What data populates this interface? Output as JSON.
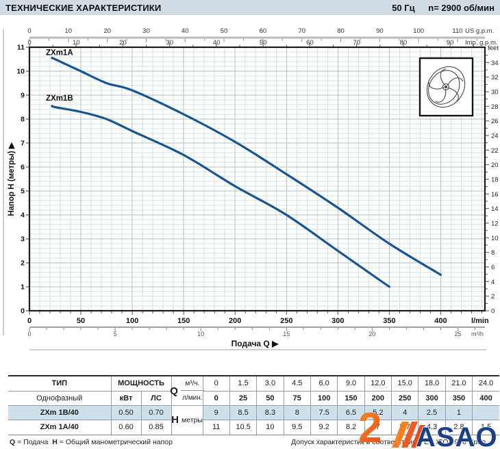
{
  "header": {
    "title": "ТЕХНИЧЕСКИЕ ХАРАКТЕРИСТИКИ",
    "frequency": "50 Гц",
    "speed": "n= 2900  об/мин"
  },
  "chart_data": {
    "type": "line",
    "xlabel": "Подача Q  ▶",
    "ylabel": "Напор H (метры)  ▶",
    "curve_color": "#175590",
    "axes": {
      "q_max": 443,
      "h_max": 11,
      "x_top_us": {
        "unit": "US g.p.m.",
        "labels": [
          0,
          10,
          20,
          30,
          40,
          50,
          60,
          70,
          80,
          90,
          100,
          110
        ],
        "minor_step": 5,
        "lmin_per_unit": 3.785
      },
      "x_top_imp": {
        "unit": "Imp. g.p.m.",
        "labels": [
          0,
          10,
          20,
          30,
          40,
          50,
          60,
          70,
          80,
          90
        ],
        "minor_step": 5,
        "lmin_per_unit": 4.546
      },
      "x_bottom_lmin": {
        "unit": "l/min",
        "labels": [
          0,
          50,
          100,
          150,
          200,
          250,
          300,
          350,
          400
        ],
        "minor_step": 10,
        "lmin_per_unit": 1
      },
      "x_bottom_m3h": {
        "unit": "m³/h",
        "labels": [
          0,
          5,
          10,
          15,
          20,
          25
        ],
        "minor_step": 1,
        "lmin_per_unit": 16.6667
      },
      "y_left_m": {
        "labels": [
          0,
          1,
          2,
          3,
          4,
          5,
          6,
          7,
          8,
          9,
          10,
          11
        ],
        "minor_step": 0.2
      },
      "y_right_feet": {
        "unit": "feet",
        "labels": [
          0,
          2,
          4,
          6,
          8,
          10,
          12,
          14,
          16,
          18,
          20,
          22,
          24,
          26,
          28,
          30,
          32,
          34
        ],
        "minor_step": 1,
        "m_per_unit": 0.3048
      }
    },
    "series": [
      {
        "name": "ZXm1A",
        "label_pos": [
          16,
          10.78
        ],
        "points": [
          [
            22,
            10.55
          ],
          [
            25,
            10.5
          ],
          [
            50,
            10
          ],
          [
            75,
            9.5
          ],
          [
            100,
            9.2
          ],
          [
            150,
            8.2
          ],
          [
            200,
            7.05
          ],
          [
            250,
            5.7
          ],
          [
            300,
            4.3
          ],
          [
            350,
            2.8
          ],
          [
            400,
            1.5
          ]
        ]
      },
      {
        "name": "ZXm1B",
        "label_pos": [
          16,
          8.88
        ],
        "points": [
          [
            22,
            8.55
          ],
          [
            25,
            8.5
          ],
          [
            50,
            8.3
          ],
          [
            75,
            8
          ],
          [
            100,
            7.5
          ],
          [
            150,
            6.5
          ],
          [
            200,
            5.2
          ],
          [
            250,
            4
          ],
          [
            300,
            2.5
          ],
          [
            350,
            1
          ]
        ]
      }
    ]
  },
  "table": {
    "col1_header": "ТИП",
    "col1_sub": "Однофазный",
    "power_header": "МОЩНОСТЬ",
    "power_kw": "кВт",
    "power_hp": "ЛС",
    "q_letter": "Q",
    "q_unit_m3h": "м³/ч.",
    "q_unit_lmin": "л/мин.",
    "h_letter": "H",
    "h_unit": "метры",
    "q_m3h": [
      "0",
      "1.5",
      "3.0",
      "4.5",
      "6.0",
      "9.0",
      "12.0",
      "15.0",
      "18.0",
      "21.0",
      "24.0"
    ],
    "q_lmin": [
      "0",
      "25",
      "50",
      "75",
      "100",
      "150",
      "200",
      "250",
      "300",
      "350",
      "400"
    ],
    "rows": [
      {
        "type": "ZXm 1B/40",
        "kw": "0.50",
        "hp": "0.70",
        "highlight": true,
        "h": [
          "9",
          "8.5",
          "8.3",
          "8",
          "7.5",
          "6.5",
          "5.2",
          "4",
          "2.5",
          "1",
          ""
        ]
      },
      {
        "type": "ZXm 1A/40",
        "kw": "0.60",
        "hp": "0.85",
        "highlight": false,
        "h": [
          "11",
          "10.5",
          "10",
          "9.5",
          "9.2",
          "8.2",
          "7",
          "5.7",
          "4.3",
          "2.8",
          "1.5"
        ]
      }
    ]
  },
  "notes": {
    "legend_q": "Q",
    "legend_q_text": "= Подача",
    "legend_h": "H",
    "legend_h_text": "= Общий манометрический напор",
    "tolerance": "Допуск характеристик в соответствии с EN ISO 9906 Прил. A"
  },
  "logo": {
    "mark": "2",
    "text": "ASAO"
  }
}
